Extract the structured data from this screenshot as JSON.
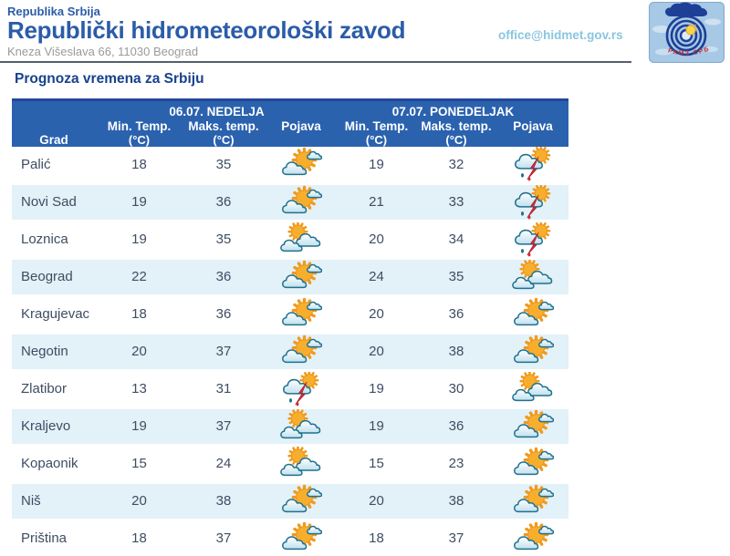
{
  "header": {
    "country": "Republika Srbija",
    "org": "Republički hidrometeorološki zavod",
    "address": "Kneza Višeslava 66, 11030 Beograd",
    "email": "office@hidmet.gov.rs",
    "logo_text": "РХМЗ СРБИЈЕ"
  },
  "title": "Prognoza vremena za Srbiju",
  "colors": {
    "brand_blue": "#2B5CA7",
    "title_navy": "#17418D",
    "table_header_bg": "#2B62AE",
    "table_header_top_border": "#24479B",
    "row_alt_bg": "#E3F1F8",
    "row_text": "#3E4D62",
    "email_blue": "#8AC6DF",
    "address_gray": "#9A9A9A",
    "lightning_red": "#CE2B3C",
    "sun_orange": "#F8AE2D",
    "cloud_stroke_teal": "#20718E"
  },
  "table": {
    "day_headers": [
      "06.07. NEDELJA",
      "07.07. PONEDELJAK"
    ],
    "columns": {
      "city": "Grad",
      "min": "Min. Temp.",
      "max": "Maks. temp.",
      "unit": "(°C)",
      "pojava": "Pojava"
    },
    "icon_legend": {
      "partly-cloudy": "sun with clouds",
      "mostly-cloudy": "sun behind two clouds",
      "thunderstorm": "cloud with red lightning and rain"
    },
    "rows": [
      {
        "city": "Palić",
        "d1_min": "18",
        "d1_max": "35",
        "d1_icon": "partly-cloudy",
        "d2_min": "19",
        "d2_max": "32",
        "d2_icon": "thunderstorm"
      },
      {
        "city": "Novi Sad",
        "d1_min": "19",
        "d1_max": "36",
        "d1_icon": "partly-cloudy",
        "d2_min": "21",
        "d2_max": "33",
        "d2_icon": "thunderstorm"
      },
      {
        "city": "Loznica",
        "d1_min": "19",
        "d1_max": "35",
        "d1_icon": "mostly-cloudy",
        "d2_min": "20",
        "d2_max": "34",
        "d2_icon": "thunderstorm"
      },
      {
        "city": "Beograd",
        "d1_min": "22",
        "d1_max": "36",
        "d1_icon": "partly-cloudy",
        "d2_min": "24",
        "d2_max": "35",
        "d2_icon": "mostly-cloudy"
      },
      {
        "city": "Kragujevac",
        "d1_min": "18",
        "d1_max": "36",
        "d1_icon": "partly-cloudy",
        "d2_min": "20",
        "d2_max": "36",
        "d2_icon": "partly-cloudy"
      },
      {
        "city": "Negotin",
        "d1_min": "20",
        "d1_max": "37",
        "d1_icon": "partly-cloudy",
        "d2_min": "20",
        "d2_max": "38",
        "d2_icon": "partly-cloudy"
      },
      {
        "city": "Zlatibor",
        "d1_min": "13",
        "d1_max": "31",
        "d1_icon": "thunderstorm",
        "d2_min": "19",
        "d2_max": "30",
        "d2_icon": "mostly-cloudy"
      },
      {
        "city": "Kraljevo",
        "d1_min": "19",
        "d1_max": "37",
        "d1_icon": "mostly-cloudy",
        "d2_min": "19",
        "d2_max": "36",
        "d2_icon": "partly-cloudy"
      },
      {
        "city": "Kopaonik",
        "d1_min": "15",
        "d1_max": "24",
        "d1_icon": "mostly-cloudy",
        "d2_min": "15",
        "d2_max": "23",
        "d2_icon": "partly-cloudy"
      },
      {
        "city": "Niš",
        "d1_min": "20",
        "d1_max": "38",
        "d1_icon": "partly-cloudy",
        "d2_min": "20",
        "d2_max": "38",
        "d2_icon": "partly-cloudy"
      },
      {
        "city": "Priština",
        "d1_min": "18",
        "d1_max": "37",
        "d1_icon": "partly-cloudy",
        "d2_min": "18",
        "d2_max": "37",
        "d2_icon": "partly-cloudy"
      }
    ]
  }
}
